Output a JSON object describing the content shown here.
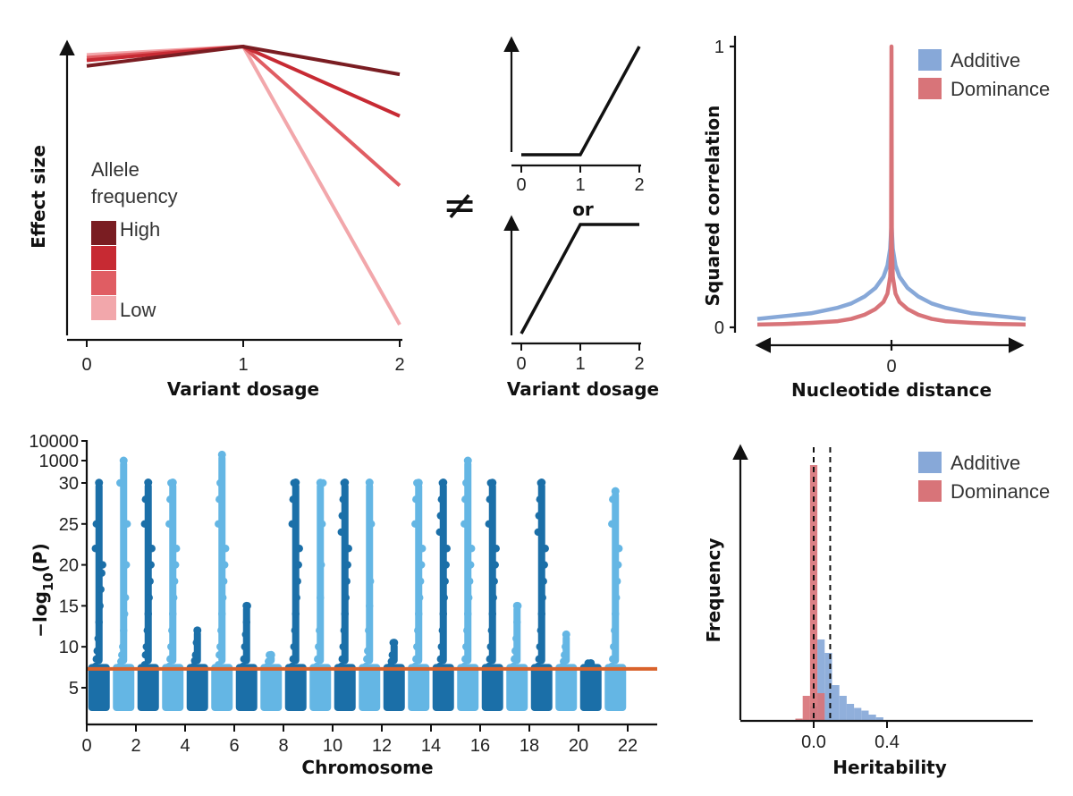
{
  "chart_data": [
    {
      "type": "line",
      "panel": "effect-size-vs-dosage",
      "xlabel": "Variant dosage",
      "ylabel": "Effect size",
      "x_ticks": [
        "0",
        "1",
        "2"
      ],
      "x": [
        0,
        1,
        2
      ],
      "legend": {
        "title_lines": [
          "Allele",
          "frequency"
        ],
        "high_label": "High",
        "low_label": "Low"
      },
      "series": [
        {
          "values": [
            0.93,
            1.0,
            0.9
          ],
          "color": "#7a1d22"
        },
        {
          "values": [
            0.95,
            1.0,
            0.75
          ],
          "color": "#c72a33"
        },
        {
          "values": [
            0.96,
            1.0,
            0.5
          ],
          "color": "#e05d63"
        },
        {
          "values": [
            0.97,
            1.0,
            0.0
          ],
          "color": "#f2a7ab"
        }
      ]
    },
    {
      "type": "line",
      "panel": "recessive-dominant-schematic",
      "not_equal_symbol": "≠",
      "or_label": "or",
      "xlabel": "Variant dosage",
      "x_ticks": [
        "0",
        "1",
        "2"
      ],
      "top": {
        "x": [
          0,
          1,
          2
        ],
        "y": [
          0,
          0,
          1
        ]
      },
      "bottom": {
        "x": [
          0,
          1,
          2
        ],
        "y": [
          0,
          1,
          1
        ]
      }
    },
    {
      "type": "line",
      "panel": "squared-correlation",
      "xlabel": "Nucleotide distance",
      "ylabel": "Squared correlation",
      "x_ticks": [
        "0"
      ],
      "y_ticks": [
        "0",
        "1"
      ],
      "ylim": [
        0,
        1
      ],
      "legend_position": "top-right",
      "series": [
        {
          "name": "Additive",
          "color": "#87a8d8",
          "x": [
            -1.0,
            -0.8,
            -0.6,
            -0.4,
            -0.3,
            -0.2,
            -0.12,
            -0.06,
            -0.03,
            -0.01,
            0,
            0.01,
            0.03,
            0.06,
            0.12,
            0.2,
            0.3,
            0.4,
            0.6,
            0.8,
            1.0
          ],
          "y": [
            0.03,
            0.04,
            0.05,
            0.07,
            0.085,
            0.11,
            0.14,
            0.18,
            0.22,
            0.28,
            0.37,
            0.28,
            0.22,
            0.18,
            0.14,
            0.11,
            0.085,
            0.07,
            0.05,
            0.04,
            0.03
          ]
        },
        {
          "name": "Dominance",
          "color": "#d87479",
          "x": [
            -1.0,
            -0.8,
            -0.6,
            -0.4,
            -0.3,
            -0.2,
            -0.12,
            -0.06,
            -0.03,
            -0.01,
            -0.003,
            0,
            0.003,
            0.01,
            0.03,
            0.06,
            0.12,
            0.2,
            0.3,
            0.4,
            0.6,
            0.8,
            1.0
          ],
          "y": [
            0.01,
            0.012,
            0.016,
            0.022,
            0.03,
            0.045,
            0.065,
            0.09,
            0.12,
            0.18,
            0.3,
            1.0,
            0.3,
            0.18,
            0.12,
            0.09,
            0.065,
            0.045,
            0.03,
            0.022,
            0.016,
            0.012,
            0.01
          ]
        }
      ]
    },
    {
      "type": "scatter",
      "panel": "manhattan",
      "xlabel": "Chromosome",
      "ylabel_main": "−log",
      "ylabel_sub": "10",
      "ylabel_tail": "(P)",
      "x_ticks": [
        "0",
        "2",
        "4",
        "6",
        "8",
        "10",
        "12",
        "14",
        "16",
        "18",
        "20",
        "22"
      ],
      "y_ticks": [
        "5",
        "10",
        "15",
        "20",
        "25",
        "30",
        "1000",
        "10000"
      ],
      "threshold": 7.3,
      "colors": {
        "odd": "#1b6fa8",
        "even": "#64b6e4",
        "threshold": "#d9622b"
      },
      "chromosomes": [
        {
          "chr": 1,
          "hits": [
            7.6,
            8.5,
            9.5,
            11,
            13,
            15,
            17,
            19,
            20,
            22,
            25
          ],
          "peak": 31
        },
        {
          "chr": 2,
          "hits": [
            7.6,
            8.2,
            9,
            10,
            12,
            14,
            16,
            20,
            25,
            30
          ],
          "peak": 1000
        },
        {
          "chr": 3,
          "hits": [
            7.8,
            9,
            10,
            12,
            14,
            16,
            18,
            20,
            22,
            25,
            28
          ],
          "peak": 32
        },
        {
          "chr": 4,
          "hits": [
            7.6,
            8.5,
            10,
            12,
            14,
            16,
            18,
            20,
            22,
            25,
            28,
            30
          ],
          "peak": 32
        },
        {
          "chr": 5,
          "hits": [
            7.6,
            8.3,
            9,
            10.5,
            12
          ],
          "peak": 12
        },
        {
          "chr": 6,
          "hits": [
            7.8,
            9,
            10,
            12,
            14,
            16,
            18,
            20,
            22,
            25,
            28,
            30,
            31
          ],
          "peak": 2000
        },
        {
          "chr": 7,
          "hits": [
            7.6,
            8.5,
            10,
            11.5,
            13,
            15
          ],
          "peak": 15
        },
        {
          "chr": 8,
          "hits": [
            7.6,
            8.2,
            9
          ],
          "peak": 9
        },
        {
          "chr": 9,
          "hits": [
            7.6,
            8.5,
            10,
            12,
            14,
            16,
            18,
            20,
            22,
            25,
            28,
            30
          ],
          "peak": 32
        },
        {
          "chr": 10,
          "hits": [
            7.6,
            8.5,
            10,
            12,
            16,
            20,
            25,
            30
          ],
          "peak": 31
        },
        {
          "chr": 11,
          "hits": [
            7.6,
            8.5,
            10,
            12,
            14,
            16,
            18,
            20,
            22,
            24,
            26,
            28,
            30
          ],
          "peak": 32
        },
        {
          "chr": 12,
          "hits": [
            7.6,
            8.5,
            9.5,
            12,
            15,
            18,
            25
          ],
          "peak": 32
        },
        {
          "chr": 13,
          "hits": [
            7.6,
            8.2,
            9,
            10.5
          ],
          "peak": 10.5
        },
        {
          "chr": 14,
          "hits": [
            7.6,
            8.5,
            10,
            12,
            14,
            16,
            18,
            20,
            22,
            25,
            28,
            30
          ],
          "peak": 31
        },
        {
          "chr": 15,
          "hits": [
            7.6,
            8.5,
            10,
            12,
            14,
            16,
            18,
            20,
            22,
            24,
            26,
            28,
            30
          ],
          "peak": 32
        },
        {
          "chr": 16,
          "hits": [
            7.6,
            8.5,
            10,
            12,
            14,
            16,
            18,
            20,
            22,
            25,
            28,
            30
          ],
          "peak": 1000
        },
        {
          "chr": 17,
          "hits": [
            7.6,
            8.5,
            10,
            12,
            14,
            16,
            18,
            20,
            22,
            25,
            28,
            30
          ],
          "peak": 31
        },
        {
          "chr": 18,
          "hits": [
            7.6,
            8.5,
            9.5,
            11,
            13,
            15
          ],
          "peak": 15
        },
        {
          "chr": 19,
          "hits": [
            7.6,
            8.5,
            10,
            12,
            14,
            16,
            18,
            20,
            22,
            24,
            26,
            28,
            30
          ],
          "peak": 32
        },
        {
          "chr": 20,
          "hits": [
            7.6,
            8.2,
            9,
            10,
            11.5
          ],
          "peak": 11.5
        },
        {
          "chr": 21,
          "hits": [
            7.6,
            8
          ],
          "peak": 8
        },
        {
          "chr": 22,
          "hits": [
            7.6,
            8.5,
            10,
            12,
            14,
            16,
            18,
            20,
            22,
            25,
            28
          ],
          "peak": 29
        }
      ]
    },
    {
      "type": "bar",
      "panel": "heritability-histogram",
      "xlabel": "Heritability",
      "ylabel": "Frequency",
      "x_ticks": [
        "0.0",
        "0.4"
      ],
      "x_tick_values": [
        0.0,
        0.4
      ],
      "xlim": [
        -0.3,
        1.2
      ],
      "legend_position": "top-right",
      "reference_lines": [
        0.0,
        0.09
      ],
      "bin_width": 0.04,
      "series": [
        {
          "name": "Additive",
          "color": "#87a8d8",
          "bins": [
            -0.02,
            0.02,
            0.06,
            0.1,
            0.14,
            0.18,
            0.22,
            0.26,
            0.3,
            0.34
          ],
          "values": [
            0.05,
            0.3,
            0.25,
            0.13,
            0.09,
            0.06,
            0.045,
            0.035,
            0.02,
            0.01
          ]
        },
        {
          "name": "Dominance",
          "color": "#d87479",
          "bins": [
            -0.1,
            -0.06,
            -0.02,
            0.02
          ],
          "values": [
            0.005,
            0.09,
            0.95,
            0.1
          ]
        }
      ]
    }
  ]
}
